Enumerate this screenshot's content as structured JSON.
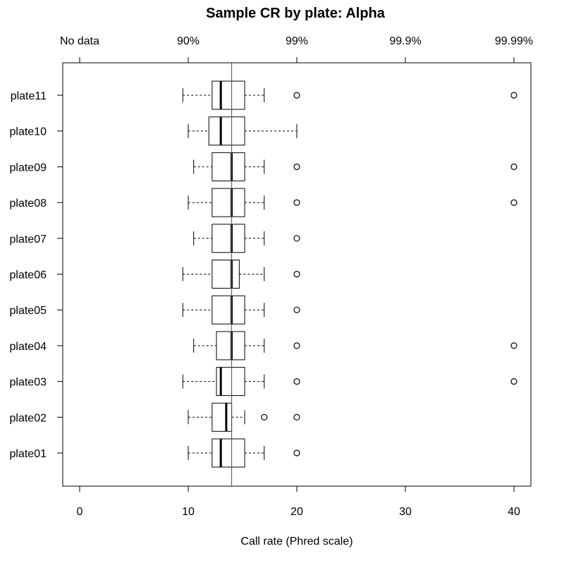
{
  "chart_data": {
    "type": "boxplot",
    "orientation": "horizontal",
    "title": "Sample CR by plate:  Alpha",
    "xlabel": "Call rate (Phred scale)",
    "ylabel": "",
    "xlim": [
      -1.5,
      41.5
    ],
    "x_ticks": [
      0,
      10,
      20,
      30,
      40
    ],
    "top_axis": {
      "ticks": [
        0,
        10,
        20,
        30,
        40
      ],
      "labels": [
        "No data",
        "90%",
        "99%",
        "99.9%",
        "99.99%"
      ]
    },
    "reference_line": {
      "x": 14,
      "color": "#a52a2a"
    },
    "categories": [
      "plate01",
      "plate02",
      "plate03",
      "plate04",
      "plate05",
      "plate06",
      "plate07",
      "plate08",
      "plate09",
      "plate10",
      "plate11"
    ],
    "boxes": [
      {
        "plate": "plate01",
        "whisker_low": 10,
        "q1": 12.2,
        "median": 13,
        "q3": 15.2,
        "whisker_high": 17,
        "outliers": [
          20
        ]
      },
      {
        "plate": "plate02",
        "whisker_low": 10,
        "q1": 12.2,
        "median": 13.5,
        "q3": 14,
        "whisker_high": 15.2,
        "outliers": [
          17,
          20
        ]
      },
      {
        "plate": "plate03",
        "whisker_low": 9.5,
        "q1": 12.6,
        "median": 13,
        "q3": 15.2,
        "whisker_high": 17,
        "outliers": [
          20,
          40
        ]
      },
      {
        "plate": "plate04",
        "whisker_low": 10.5,
        "q1": 12.6,
        "median": 14,
        "q3": 15.2,
        "whisker_high": 17,
        "outliers": [
          20,
          40
        ]
      },
      {
        "plate": "plate05",
        "whisker_low": 9.5,
        "q1": 12.2,
        "median": 14,
        "q3": 15.2,
        "whisker_high": 17,
        "outliers": [
          20
        ]
      },
      {
        "plate": "plate06",
        "whisker_low": 9.5,
        "q1": 12.2,
        "median": 14,
        "q3": 14.7,
        "whisker_high": 17,
        "outliers": [
          20
        ]
      },
      {
        "plate": "plate07",
        "whisker_low": 10.5,
        "q1": 12.2,
        "median": 14,
        "q3": 15.2,
        "whisker_high": 17,
        "outliers": [
          20
        ]
      },
      {
        "plate": "plate08",
        "whisker_low": 10,
        "q1": 12.2,
        "median": 14,
        "q3": 15.2,
        "whisker_high": 17,
        "outliers": [
          20,
          40
        ]
      },
      {
        "plate": "plate09",
        "whisker_low": 10.5,
        "q1": 12.2,
        "median": 14,
        "q3": 15.2,
        "whisker_high": 17,
        "outliers": [
          20,
          40
        ]
      },
      {
        "plate": "plate10",
        "whisker_low": 10,
        "q1": 11.9,
        "median": 13,
        "q3": 15.2,
        "whisker_high": 20,
        "outliers": []
      },
      {
        "plate": "plate11",
        "whisker_low": 9.5,
        "q1": 12.2,
        "median": 13,
        "q3": 15.2,
        "whisker_high": 17,
        "outliers": [
          20,
          40
        ]
      }
    ],
    "grid": false,
    "legend": "none"
  }
}
